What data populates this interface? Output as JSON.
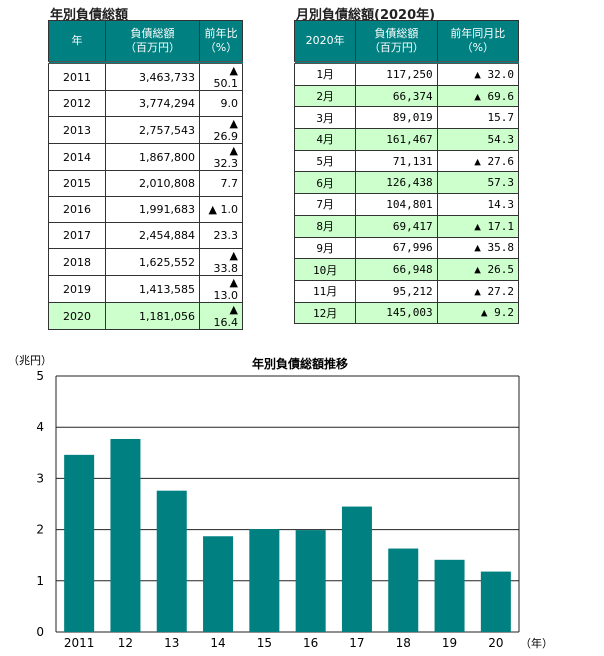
{
  "annual": {
    "title": "年別負債総額",
    "headers": [
      "年",
      "負債総額\n（百万円）",
      "前年比\n（%）"
    ],
    "rows": [
      {
        "year": "2011",
        "amount": "3,463,733",
        "change": "▲ 50.1"
      },
      {
        "year": "2012",
        "amount": "3,774,294",
        "change": "9.0"
      },
      {
        "year": "2013",
        "amount": "2,757,543",
        "change": "▲ 26.9"
      },
      {
        "year": "2014",
        "amount": "1,867,800",
        "change": "▲ 32.3"
      },
      {
        "year": "2015",
        "amount": "2,010,808",
        "change": "7.7"
      },
      {
        "year": "2016",
        "amount": "1,991,683",
        "change": "▲ 1.0"
      },
      {
        "year": "2017",
        "amount": "2,454,884",
        "change": "23.3"
      },
      {
        "year": "2018",
        "amount": "1,625,552",
        "change": "▲ 33.8"
      },
      {
        "year": "2019",
        "amount": "1,413,585",
        "change": "▲ 13.0"
      },
      {
        "year": "2020",
        "amount": "1,181,056",
        "change": "▲ 16.4"
      }
    ]
  },
  "monthly": {
    "title": "月別負債総額(2020年)",
    "headers": [
      "2020年",
      "負債総額\n（百万円）",
      "前年同月比\n（%）"
    ],
    "rows": [
      {
        "month": "1月",
        "amount": "117,250",
        "change": "▲ 32.0"
      },
      {
        "month": "2月",
        "amount": "66,374",
        "change": "▲ 69.6"
      },
      {
        "month": "3月",
        "amount": "89,019",
        "change": "15.7"
      },
      {
        "month": "4月",
        "amount": "161,467",
        "change": "54.3"
      },
      {
        "month": "5月",
        "amount": "71,131",
        "change": "▲ 27.6"
      },
      {
        "month": "6月",
        "amount": "126,438",
        "change": "57.3"
      },
      {
        "month": "7月",
        "amount": "104,801",
        "change": "14.3"
      },
      {
        "month": "8月",
        "amount": "69,417",
        "change": "▲ 17.1"
      },
      {
        "month": "9月",
        "amount": "67,996",
        "change": "▲ 35.8"
      },
      {
        "month": "10月",
        "amount": "66,948",
        "change": "▲ 26.5"
      },
      {
        "month": "11月",
        "amount": "95,212",
        "change": "▲ 27.2"
      },
      {
        "month": "12月",
        "amount": "145,003",
        "change": "▲ 9.2"
      }
    ]
  },
  "chart_data": {
    "type": "bar",
    "title": "年別負債総額推移",
    "ylabel": "（兆円）",
    "xlabel": "（年）",
    "categories": [
      "2011",
      "12",
      "13",
      "14",
      "15",
      "16",
      "17",
      "18",
      "19",
      "20"
    ],
    "values": [
      3.46,
      3.77,
      2.76,
      1.87,
      2.01,
      1.99,
      2.45,
      1.63,
      1.41,
      1.18
    ],
    "ylim": [
      0,
      5
    ],
    "yticks": [
      "0",
      "1",
      "2",
      "3",
      "4",
      "5"
    ],
    "grid": true,
    "bar_color": "#008080"
  }
}
